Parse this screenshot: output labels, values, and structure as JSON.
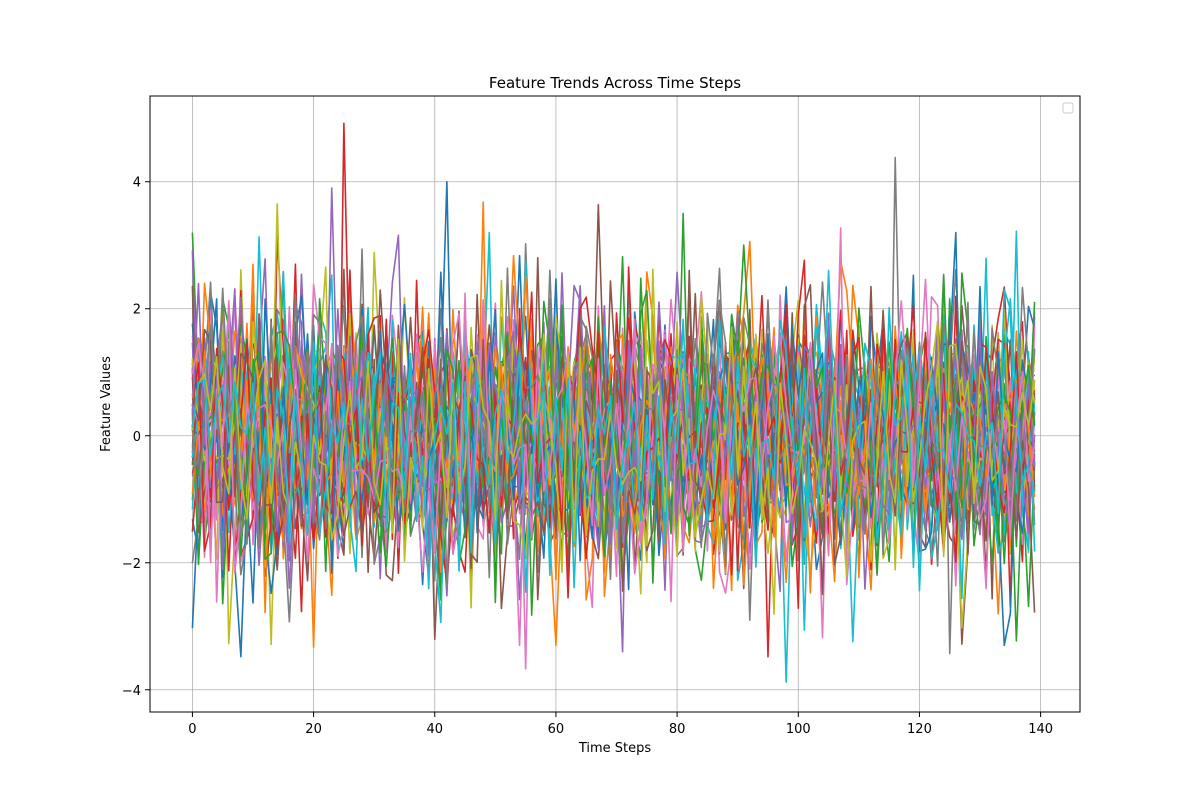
{
  "chart_data": {
    "type": "line",
    "title": "Feature Trends Across Time Steps",
    "xlabel": "Time Steps",
    "ylabel": "Feature Values",
    "xlim": [
      -7,
      146.5
    ],
    "ylim": [
      -4.35,
      5.35
    ],
    "x_ticks": [
      0,
      20,
      40,
      60,
      80,
      100,
      120,
      140
    ],
    "x_tick_labels": [
      "0",
      "20",
      "40",
      "60",
      "80",
      "100",
      "120",
      "140"
    ],
    "y_ticks": [
      -4,
      -2,
      0,
      2,
      4
    ],
    "y_tick_labels": [
      "−4",
      "−2",
      "0",
      "2",
      "4"
    ],
    "grid": true,
    "legend": {
      "position": "top-right",
      "entries": []
    },
    "x_range": [
      0,
      139
    ],
    "series_count": 50,
    "series_colors": [
      "#1f77b4",
      "#ff7f0e",
      "#2ca02c",
      "#d62728",
      "#9467bd",
      "#8c564b",
      "#e377c2",
      "#7f7f7f",
      "#bcbd22",
      "#17becf"
    ],
    "value_distribution": {
      "mean": 0,
      "std": 1
    },
    "highlights": [
      {
        "x": 25,
        "y": 4.92
      },
      {
        "x": 42,
        "y": 4.0
      },
      {
        "x": 116,
        "y": 4.38
      },
      {
        "x": 23,
        "y": 3.9
      },
      {
        "x": 48,
        "y": 3.68
      },
      {
        "x": 14,
        "y": 3.65
      },
      {
        "x": 67,
        "y": 3.64
      },
      {
        "x": 81,
        "y": 3.5
      },
      {
        "x": 98,
        "y": -3.88
      },
      {
        "x": 55,
        "y": -3.67
      },
      {
        "x": 95,
        "y": -3.48
      },
      {
        "x": 8,
        "y": -3.48
      },
      {
        "x": 125,
        "y": -3.43
      },
      {
        "x": 71,
        "y": -3.4
      },
      {
        "x": 20,
        "y": -3.33
      },
      {
        "x": 6,
        "y": -3.27
      },
      {
        "x": 127,
        "y": -3.28
      },
      {
        "x": 136,
        "y": -3.23
      },
      {
        "x": 136,
        "y": 3.22
      },
      {
        "x": 107,
        "y": 3.27
      }
    ]
  }
}
